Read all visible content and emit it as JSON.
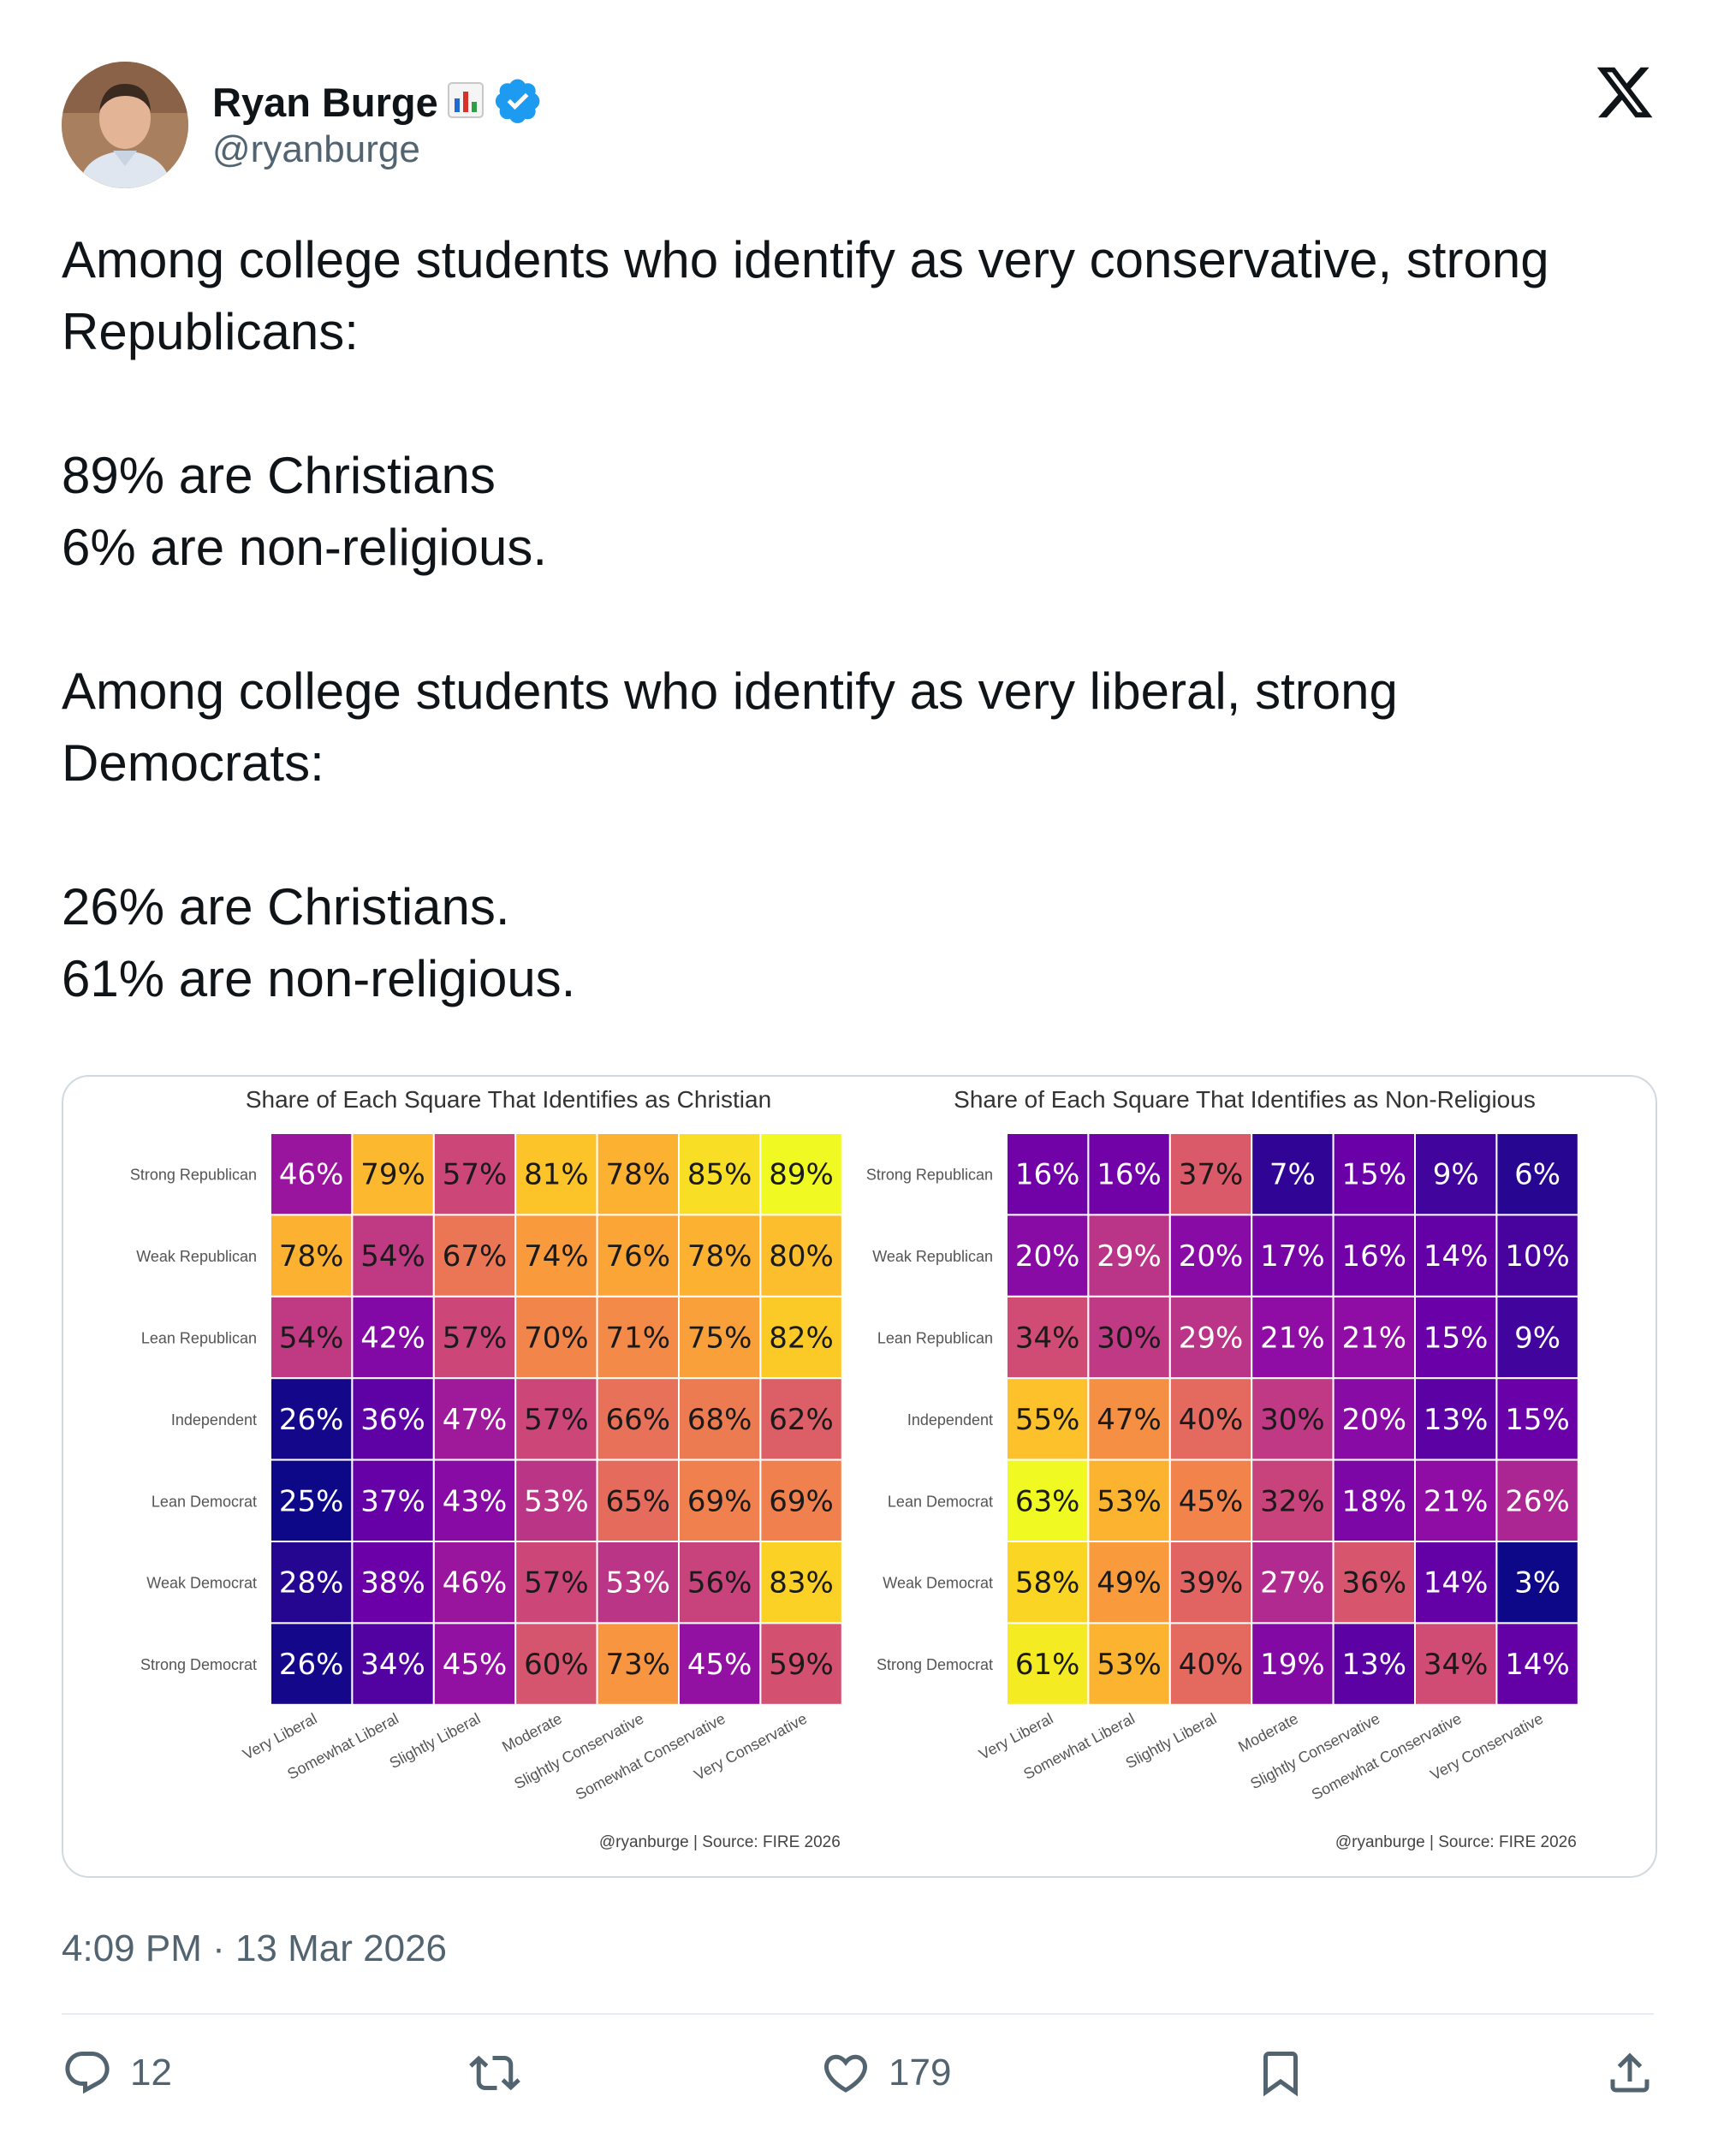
{
  "author": {
    "name": "Ryan Burge",
    "name_emoji": "bar-chart-emoji",
    "verified": true,
    "handle": "@ryanburge"
  },
  "tweet": {
    "paragraphs": [
      [
        "Among college students who identify as very conservative, strong Republicans:"
      ],
      [
        "89% are Christians",
        "6% are non-religious."
      ],
      [
        "Among college students who identify as very liberal, strong Democrats:"
      ],
      [
        "26% are Christians.",
        "61% are non-religious."
      ]
    ],
    "timestamp": "4:09 PM · 13 Mar 2026"
  },
  "actions": {
    "replies": "12",
    "reposts": "",
    "likes": "179"
  },
  "chart_data": [
    {
      "type": "heatmap",
      "title": "Share of Each Square That Identifies as Christian",
      "rows": [
        "Strong Republican",
        "Weak Republican",
        "Lean Republican",
        "Independent",
        "Lean Democrat",
        "Weak Democrat",
        "Strong Democrat"
      ],
      "columns": [
        "Very Liberal",
        "Somewhat Liberal",
        "Slightly Liberal",
        "Moderate",
        "Slightly Conservative",
        "Somewhat Conservative",
        "Very Conservative"
      ],
      "values": [
        [
          46,
          79,
          57,
          81,
          78,
          85,
          89
        ],
        [
          78,
          54,
          67,
          74,
          76,
          78,
          80
        ],
        [
          54,
          42,
          57,
          70,
          71,
          75,
          82
        ],
        [
          26,
          36,
          47,
          57,
          66,
          68,
          62
        ],
        [
          25,
          37,
          43,
          53,
          65,
          69,
          69
        ],
        [
          28,
          38,
          46,
          57,
          53,
          56,
          83
        ],
        [
          26,
          34,
          45,
          60,
          73,
          45,
          59
        ]
      ],
      "value_format": "percent",
      "colormap": "plasma",
      "source": "@ryanburge | Source: FIRE 2026"
    },
    {
      "type": "heatmap",
      "title": "Share of Each Square That Identifies as Non-Religious",
      "rows": [
        "Strong Republican",
        "Weak Republican",
        "Lean Republican",
        "Independent",
        "Lean Democrat",
        "Weak Democrat",
        "Strong Democrat"
      ],
      "columns": [
        "Very Liberal",
        "Somewhat Liberal",
        "Slightly Liberal",
        "Moderate",
        "Slightly Conservative",
        "Somewhat Conservative",
        "Very Conservative"
      ],
      "values": [
        [
          16,
          16,
          37,
          7,
          15,
          9,
          6
        ],
        [
          20,
          29,
          20,
          17,
          16,
          14,
          10
        ],
        [
          34,
          30,
          29,
          21,
          21,
          15,
          9
        ],
        [
          55,
          47,
          40,
          30,
          20,
          13,
          15
        ],
        [
          63,
          53,
          45,
          32,
          18,
          21,
          26
        ],
        [
          58,
          49,
          39,
          27,
          36,
          14,
          3
        ],
        [
          61,
          53,
          40,
          19,
          13,
          34,
          14
        ]
      ],
      "value_format": "percent",
      "colormap": "plasma",
      "source": "@ryanburge | Source: FIRE 2026"
    }
  ],
  "colors": {
    "text": "#0f1419",
    "muted": "#536471",
    "verified": "#1d9bf0",
    "border": "#cfd9de"
  }
}
